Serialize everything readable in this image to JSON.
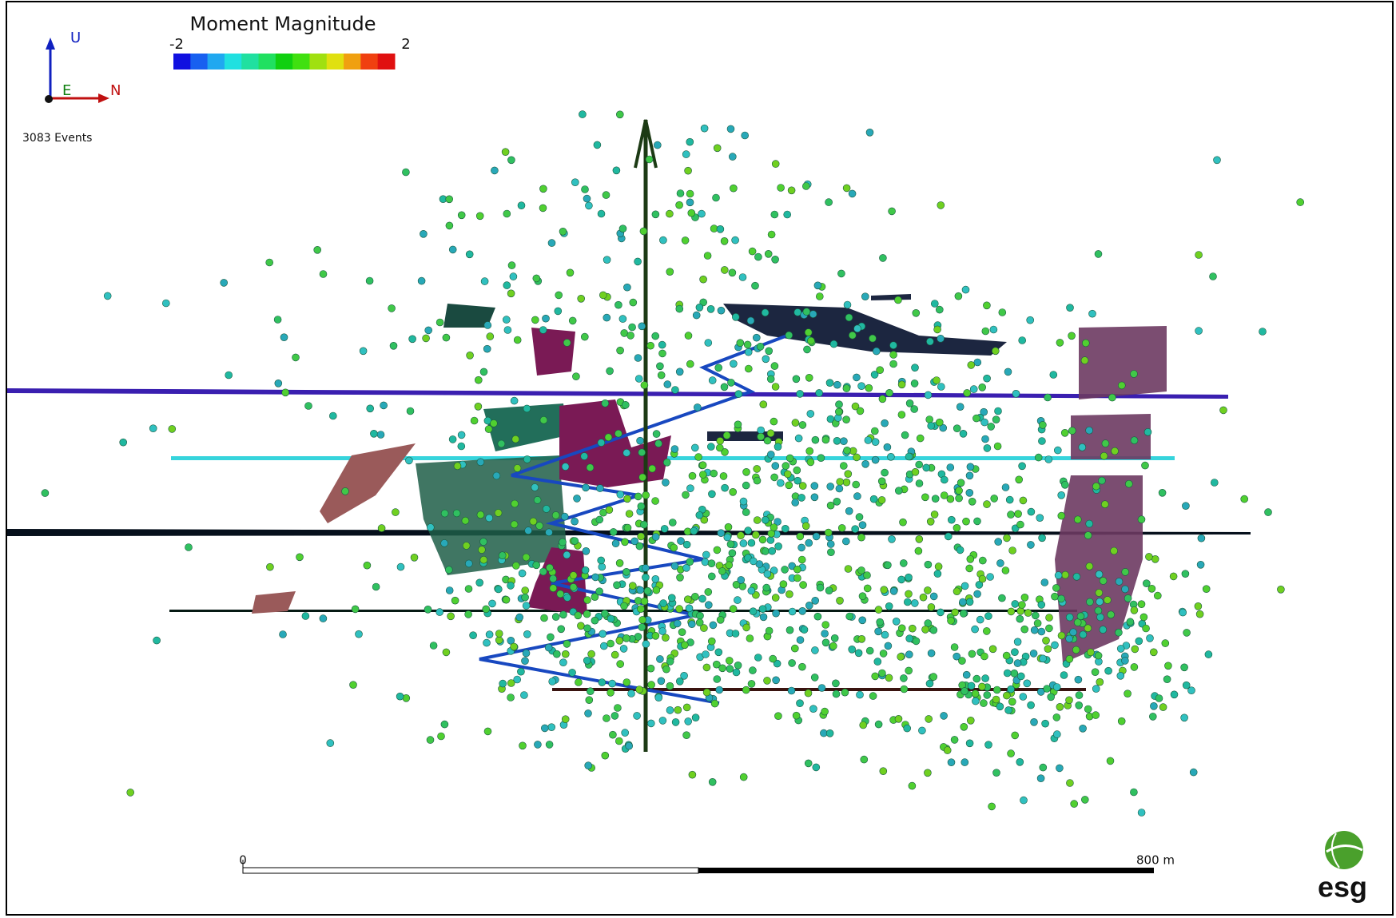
{
  "legend": {
    "title": "Moment Magnitude",
    "min_label": "-2",
    "max_label": "2"
  },
  "axes": {
    "up": "U",
    "east": "E",
    "north": "N"
  },
  "event_count": "3083 Events",
  "scale_bar": {
    "start_label": "0",
    "end_label": "800 m"
  },
  "logo": "esg"
}
